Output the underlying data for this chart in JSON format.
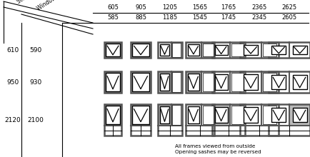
{
  "stud_opening_widths": [
    "605",
    "905",
    "1205",
    "1565",
    "1765",
    "2365",
    "2625"
  ],
  "window_size_widths": [
    "585",
    "885",
    "1185",
    "1545",
    "1745",
    "2345",
    "2605"
  ],
  "stud_opening_heights": [
    "610",
    "950",
    "2120"
  ],
  "window_size_heights": [
    "590",
    "930",
    "2100"
  ],
  "bg_color": "#ffffff",
  "note_text1": "All frames viewed from outside",
  "note_text2": "Opening sashes may be reversed",
  "windows": [
    [
      {
        "type": "single",
        "gray": "frame",
        "bottom": false
      },
      {
        "type": "single",
        "gray": "frame",
        "bottom": false
      },
      {
        "type": "wide_right",
        "gray": "none",
        "bottom": false
      },
      {
        "type": "wide_right",
        "gray": "right",
        "bottom": false
      },
      {
        "type": "wide_right",
        "gray": "none",
        "bottom": false
      },
      {
        "type": "wide_right",
        "gray": "none",
        "bottom": false
      },
      {
        "type": "double",
        "gray": "none",
        "bottom": false
      }
    ],
    [
      {
        "type": "single",
        "gray": "frame",
        "bottom": false
      },
      {
        "type": "single",
        "gray": "none",
        "bottom": false
      },
      {
        "type": "wide_right",
        "gray": "left",
        "bottom": false
      },
      {
        "type": "wide_right",
        "gray": "left",
        "bottom": false
      },
      {
        "type": "wide_right",
        "gray": "none",
        "bottom": false
      },
      {
        "type": "wide_right",
        "gray": "right",
        "bottom": false
      },
      {
        "type": "double",
        "gray": "none",
        "bottom": false
      }
    ],
    [
      {
        "type": "single",
        "gray": "left",
        "bottom": true
      },
      {
        "type": "single",
        "gray": "none",
        "bottom": true
      },
      {
        "type": "wide_right",
        "gray": "left",
        "bottom": true
      },
      {
        "type": "wide_right",
        "gray": "none",
        "bottom": true
      },
      {
        "type": "wide_right",
        "gray": "left",
        "bottom": true
      },
      {
        "type": "wide_right",
        "gray": "none",
        "bottom": true
      },
      {
        "type": "double",
        "gray": "right",
        "bottom": true
      }
    ]
  ]
}
